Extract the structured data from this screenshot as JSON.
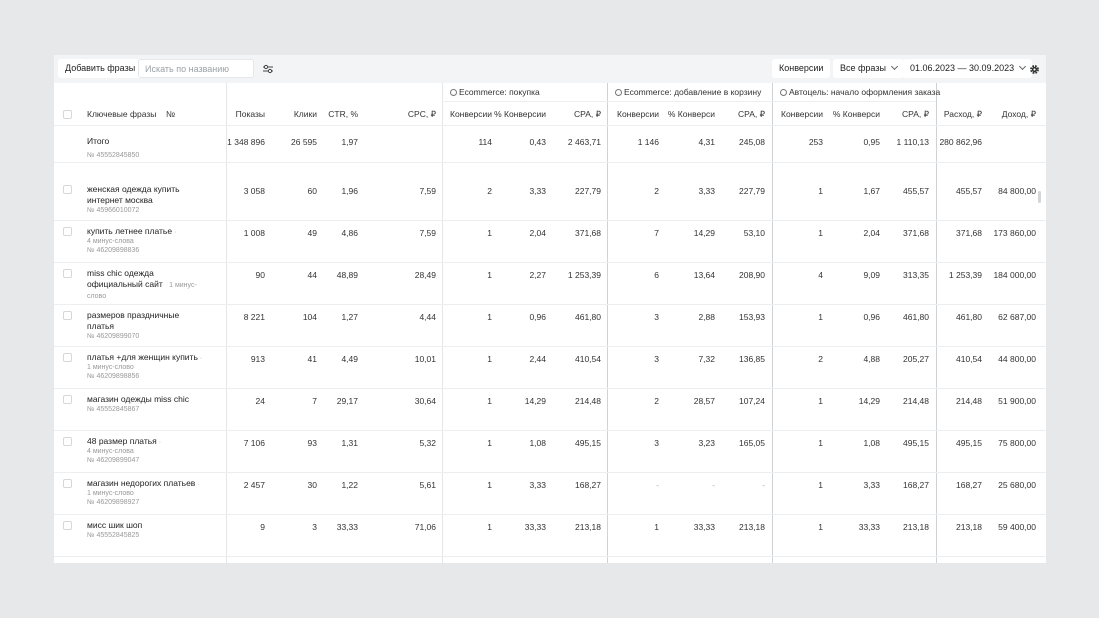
{
  "toolbar": {
    "add_phrases": "Добавить фразы",
    "search_placeholder": "Искать по названию",
    "conversions": "Конверсии",
    "all_phrases": "Все фразы",
    "date_range": "01.06.2023 — 30.09.2023"
  },
  "goals": {
    "g1": "Ecommerce: покупка",
    "g2": "Ecommerce: добавление в корзину",
    "g3": "Автоцель: начало оформления заказа"
  },
  "columns": {
    "keyword": "Ключевые фразы",
    "no": "№",
    "shows": "Показы",
    "clicks": "Клики",
    "ctr": "CTR, %",
    "cpc": "CPC, ₽",
    "conv": "Конверсии",
    "conv_pct": "% Конверсии",
    "cpa": "CPA, ₽",
    "conv2": "Конверсии",
    "conv_pct2": "% Конверси",
    "cpa2": "CPA, ₽",
    "conv3": "Конверсии",
    "conv_pct3": "% Конверси",
    "cpa3": "CPA, ₽",
    "spend": "Расход, ₽",
    "income": "Доход, ₽"
  },
  "totals": {
    "label": "Итого",
    "partial_id": "№ 45552845850",
    "shows": "1 348 896",
    "clicks": "26 595",
    "ctr": "1,97",
    "cpc": "",
    "g1_conv": "114",
    "g1_pct": "0,43",
    "g1_cpa": "2 463,71",
    "g2_conv": "1 146",
    "g2_pct": "4,31",
    "g2_cpa": "245,08",
    "g3_conv": "253",
    "g3_pct": "0,95",
    "g3_cpa": "1 110,13",
    "spend": "280 862,96",
    "income": ""
  },
  "rows": [
    {
      "line1": "женская одежда купить",
      "line2": "интернет москва",
      "meta": "",
      "id": "№ 45966010072",
      "shows": "3 058",
      "clicks": "60",
      "ctr": "1,96",
      "cpc": "7,59",
      "g1_conv": "2",
      "g1_pct": "3,33",
      "g1_cpa": "227,79",
      "g2_conv": "2",
      "g2_pct": "3,33",
      "g2_cpa": "227,79",
      "g3_conv": "1",
      "g3_pct": "1,67",
      "g3_cpa": "455,57",
      "spend": "455,57",
      "income": "84 800,00"
    },
    {
      "line1": "купить летнее платье",
      "line2": "",
      "meta": "4 минус-слова",
      "id": "№ 46209898836",
      "shows": "1 008",
      "clicks": "49",
      "ctr": "4,86",
      "cpc": "7,59",
      "g1_conv": "1",
      "g1_pct": "2,04",
      "g1_cpa": "371,68",
      "g2_conv": "7",
      "g2_pct": "14,29",
      "g2_cpa": "53,10",
      "g3_conv": "1",
      "g3_pct": "2,04",
      "g3_cpa": "371,68",
      "spend": "371,68",
      "income": "173 860,00"
    },
    {
      "line1": "miss chic одежда",
      "line2": "официальный сайт",
      "meta": "1 минус-слово",
      "id": "",
      "shows": "90",
      "clicks": "44",
      "ctr": "48,89",
      "cpc": "28,49",
      "g1_conv": "1",
      "g1_pct": "2,27",
      "g1_cpa": "1 253,39",
      "g2_conv": "6",
      "g2_pct": "13,64",
      "g2_cpa": "208,90",
      "g3_conv": "4",
      "g3_pct": "9,09",
      "g3_cpa": "313,35",
      "spend": "1 253,39",
      "income": "184 000,00"
    },
    {
      "line1": "размеров праздничные платья",
      "line2": "",
      "meta": "",
      "id": "№ 46209899070",
      "shows": "8 221",
      "clicks": "104",
      "ctr": "1,27",
      "cpc": "4,44",
      "g1_conv": "1",
      "g1_pct": "0,96",
      "g1_cpa": "461,80",
      "g2_conv": "3",
      "g2_pct": "2,88",
      "g2_cpa": "153,93",
      "g3_conv": "1",
      "g3_pct": "0,96",
      "g3_cpa": "461,80",
      "spend": "461,80",
      "income": "62 687,00"
    },
    {
      "line1": "платья +для женщин купить",
      "line2": "",
      "meta": "1 минус-слово",
      "id": "№ 46209898856",
      "shows": "913",
      "clicks": "41",
      "ctr": "4,49",
      "cpc": "10,01",
      "g1_conv": "1",
      "g1_pct": "2,44",
      "g1_cpa": "410,54",
      "g2_conv": "3",
      "g2_pct": "7,32",
      "g2_cpa": "136,85",
      "g3_conv": "2",
      "g3_pct": "4,88",
      "g3_cpa": "205,27",
      "spend": "410,54",
      "income": "44 800,00"
    },
    {
      "line1": "магазин одежды miss chic",
      "line2": "",
      "meta": "",
      "id": "№ 45552845867",
      "shows": "24",
      "clicks": "7",
      "ctr": "29,17",
      "cpc": "30,64",
      "g1_conv": "1",
      "g1_pct": "14,29",
      "g1_cpa": "214,48",
      "g2_conv": "2",
      "g2_pct": "28,57",
      "g2_cpa": "107,24",
      "g3_conv": "1",
      "g3_pct": "14,29",
      "g3_cpa": "214,48",
      "spend": "214,48",
      "income": "51 900,00"
    },
    {
      "line1": "48 размер платья",
      "line2": "",
      "meta": "4 минус-слова",
      "id": "№ 46209899047",
      "shows": "7 106",
      "clicks": "93",
      "ctr": "1,31",
      "cpc": "5,32",
      "g1_conv": "1",
      "g1_pct": "1,08",
      "g1_cpa": "495,15",
      "g2_conv": "3",
      "g2_pct": "3,23",
      "g2_cpa": "165,05",
      "g3_conv": "1",
      "g3_pct": "1,08",
      "g3_cpa": "495,15",
      "spend": "495,15",
      "income": "75 800,00"
    },
    {
      "line1": "магазин недорогих платьев",
      "line2": "",
      "meta": "1 минус-слово",
      "id": "№ 46209898927",
      "shows": "2 457",
      "clicks": "30",
      "ctr": "1,22",
      "cpc": "5,61",
      "g1_conv": "1",
      "g1_pct": "3,33",
      "g1_cpa": "168,27",
      "g2_conv": "-",
      "g2_pct": "-",
      "g2_cpa": "-",
      "g3_conv": "1",
      "g3_pct": "3,33",
      "g3_cpa": "168,27",
      "spend": "168,27",
      "income": "25 680,00"
    },
    {
      "line1": "мисс шик шоп",
      "line2": "",
      "meta": "",
      "id": "№ 45552845825",
      "shows": "9",
      "clicks": "3",
      "ctr": "33,33",
      "cpc": "71,06",
      "g1_conv": "1",
      "g1_pct": "33,33",
      "g1_cpa": "213,18",
      "g2_conv": "1",
      "g2_pct": "33,33",
      "g2_cpa": "213,18",
      "g3_conv": "1",
      "g3_pct": "33,33",
      "g3_cpa": "213,18",
      "spend": "213,18",
      "income": "59 400,00"
    }
  ]
}
